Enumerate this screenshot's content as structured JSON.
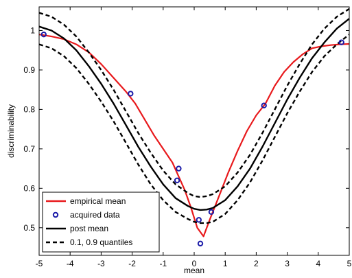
{
  "chart_data": {
    "type": "line",
    "title": "",
    "xlabel": "mean",
    "ylabel": "discriminability",
    "xlim": [
      -5,
      5
    ],
    "ylim": [
      0.43,
      1.06
    ],
    "xticks": [
      -5,
      -4,
      -3,
      -2,
      -1,
      0,
      1,
      2,
      3,
      4,
      5
    ],
    "xtick_labels": [
      "-5",
      "-4",
      "-3",
      "-2",
      "-1",
      "0",
      "1",
      "2",
      "3",
      "4",
      "5"
    ],
    "yticks": [
      0.5,
      0.6,
      0.7,
      0.8,
      0.9,
      1.0
    ],
    "ytick_labels": [
      "0.5",
      "0.6",
      "0.7",
      "0.8",
      "0.9",
      "1"
    ],
    "grid": false,
    "legend_position": "bottom-left",
    "series": [
      {
        "name": "empirical mean",
        "kind": "line",
        "color": "#e8191c",
        "style": "solid",
        "x": [
          -5.0,
          -4.6,
          -4.2,
          -3.8,
          -3.4,
          -3.0,
          -2.6,
          -2.2,
          -1.9,
          -1.6,
          -1.3,
          -1.0,
          -0.7,
          -0.5,
          -0.3,
          -0.1,
          0.1,
          0.3,
          0.5,
          0.8,
          1.1,
          1.4,
          1.7,
          2.0,
          2.3,
          2.6,
          2.9,
          3.2,
          3.5,
          3.8,
          4.1,
          4.4,
          4.7,
          5.0
        ],
        "y": [
          0.99,
          0.985,
          0.978,
          0.965,
          0.945,
          0.915,
          0.88,
          0.845,
          0.815,
          0.775,
          0.735,
          0.7,
          0.665,
          0.63,
          0.595,
          0.55,
          0.5,
          0.478,
          0.52,
          0.58,
          0.64,
          0.695,
          0.745,
          0.785,
          0.815,
          0.86,
          0.895,
          0.92,
          0.94,
          0.955,
          0.96,
          0.963,
          0.965,
          0.966
        ]
      },
      {
        "name": "acquired data",
        "kind": "scatter",
        "color": "#1a1aa8",
        "x": [
          -4.85,
          -2.05,
          -0.5,
          -0.55,
          0.15,
          0.2,
          0.55,
          2.25,
          4.75
        ],
        "y": [
          0.99,
          0.84,
          0.65,
          0.62,
          0.52,
          0.46,
          0.54,
          0.81,
          0.97
        ]
      },
      {
        "name": "post mean",
        "kind": "line",
        "color": "#000000",
        "style": "solid",
        "x": [
          -5.0,
          -4.6,
          -4.2,
          -3.8,
          -3.4,
          -3.0,
          -2.6,
          -2.2,
          -1.8,
          -1.4,
          -1.0,
          -0.6,
          -0.2,
          0.0,
          0.2,
          0.4,
          0.6,
          1.0,
          1.4,
          1.8,
          2.2,
          2.6,
          3.0,
          3.4,
          3.8,
          4.2,
          4.6,
          5.0
        ],
        "y": [
          1.01,
          1.0,
          0.98,
          0.95,
          0.91,
          0.865,
          0.815,
          0.76,
          0.705,
          0.655,
          0.61,
          0.575,
          0.555,
          0.548,
          0.545,
          0.546,
          0.55,
          0.57,
          0.605,
          0.65,
          0.705,
          0.765,
          0.825,
          0.88,
          0.93,
          0.97,
          1.005,
          1.03
        ]
      },
      {
        "name": "0.1, 0.9 quantiles",
        "kind": "line",
        "color": "#000000",
        "style": "dashed",
        "x": [
          -5.0,
          -4.6,
          -4.2,
          -3.8,
          -3.4,
          -3.0,
          -2.6,
          -2.2,
          -1.8,
          -1.4,
          -1.0,
          -0.6,
          -0.2,
          0.0,
          0.2,
          0.4,
          0.6,
          1.0,
          1.4,
          1.8,
          2.2,
          2.6,
          3.0,
          3.4,
          3.8,
          4.2,
          4.6,
          5.0
        ],
        "y": [
          1.045,
          1.035,
          1.015,
          0.985,
          0.945,
          0.9,
          0.85,
          0.795,
          0.74,
          0.69,
          0.645,
          0.61,
          0.588,
          0.58,
          0.578,
          0.58,
          0.585,
          0.605,
          0.64,
          0.685,
          0.74,
          0.8,
          0.86,
          0.915,
          0.965,
          1.005,
          1.035,
          1.055
        ]
      },
      {
        "name": "0.1, 0.9 quantiles (lower)",
        "kind": "line",
        "color": "#000000",
        "style": "dashed",
        "show_in_legend": false,
        "x": [
          -5.0,
          -4.6,
          -4.2,
          -3.8,
          -3.4,
          -3.0,
          -2.6,
          -2.2,
          -1.8,
          -1.4,
          -1.0,
          -0.6,
          -0.2,
          0.0,
          0.2,
          0.4,
          0.6,
          1.0,
          1.4,
          1.8,
          2.2,
          2.6,
          3.0,
          3.4,
          3.8,
          4.2,
          4.6,
          5.0
        ],
        "y": [
          0.965,
          0.955,
          0.935,
          0.905,
          0.865,
          0.82,
          0.77,
          0.715,
          0.66,
          0.61,
          0.57,
          0.54,
          0.522,
          0.515,
          0.512,
          0.512,
          0.515,
          0.535,
          0.57,
          0.615,
          0.67,
          0.73,
          0.79,
          0.845,
          0.895,
          0.935,
          0.965,
          0.99
        ]
      }
    ]
  }
}
